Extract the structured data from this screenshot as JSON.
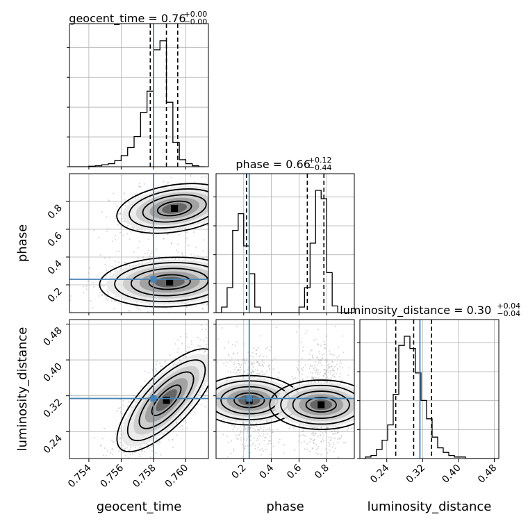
{
  "chart_data": {
    "type": "corner",
    "parameters": [
      "geocent_time",
      "phase",
      "luminosity_distance"
    ],
    "axis_labels": {
      "x": [
        "geocent_time",
        "phase",
        "luminosity_distance"
      ],
      "y": [
        "phase",
        "luminosity_distance"
      ]
    },
    "ranges": {
      "geocent_time": [
        0.7528,
        0.7614
      ],
      "phase": [
        0.0,
        1.0
      ],
      "luminosity_distance": [
        0.18,
        0.49
      ]
    },
    "ticks": {
      "geocent_time": [
        "0.754",
        "0.756",
        "0.758",
        "0.760"
      ],
      "phase": [
        "0.2",
        "0.4",
        "0.6",
        "0.8"
      ],
      "luminosity_distance": [
        "0.24",
        "0.32",
        "0.40",
        "0.48"
      ]
    },
    "truth": {
      "geocent_time": 0.758,
      "phase": 0.24,
      "luminosity_distance": 0.314
    },
    "titles": [
      {
        "param": "geocent_time",
        "prefix": "geocent_time = ",
        "median": "0.76",
        "plus": "+0.00",
        "minus": "−0.00"
      },
      {
        "param": "phase",
        "prefix": "phase = ",
        "median": "0.66",
        "plus": "+0.12",
        "minus": "−0.44"
      },
      {
        "param": "luminosity_distance",
        "prefix": "luminosity_distance = ",
        "median": "0.30",
        "plus": "+0.04",
        "minus": "−0.04"
      }
    ],
    "quantiles": {
      "geocent_time": [
        0.7578,
        0.7588,
        0.7595
      ],
      "phase": [
        0.22,
        0.66,
        0.78
      ],
      "luminosity_distance": [
        0.26,
        0.3,
        0.34
      ]
    },
    "histograms": {
      "geocent_time": {
        "edges_start": 0.7528,
        "bin_width": 0.0004,
        "counts": [
          0,
          0,
          0,
          1,
          2,
          4,
          6,
          12,
          22,
          38,
          60,
          108,
          150,
          232,
          250,
          128,
          48,
          14,
          6,
          2,
          0
        ]
      },
      "phase": {
        "edges_start": 0.0,
        "bin_width": 0.04,
        "counts": [
          0,
          10,
          45,
          148,
          178,
          120,
          70,
          10,
          0,
          0,
          0,
          0,
          0,
          0,
          0,
          10,
          45,
          125,
          220,
          205,
          72,
          12,
          0,
          0,
          0
        ]
      },
      "luminosity_distance": {
        "edges_start": 0.18,
        "bin_width": 0.0124,
        "counts": [
          0,
          1,
          2,
          6,
          12,
          22,
          42,
          74,
          80,
          72,
          56,
          38,
          26,
          14,
          7,
          4,
          2,
          1,
          1,
          0,
          0,
          0,
          0,
          0,
          0
        ]
      }
    },
    "grid": true,
    "colors": {
      "truth": "#4682b4",
      "contour": "#000000",
      "points": "#9a9a9a",
      "quantile": "#000000",
      "grid": "#b0b0b0"
    }
  }
}
